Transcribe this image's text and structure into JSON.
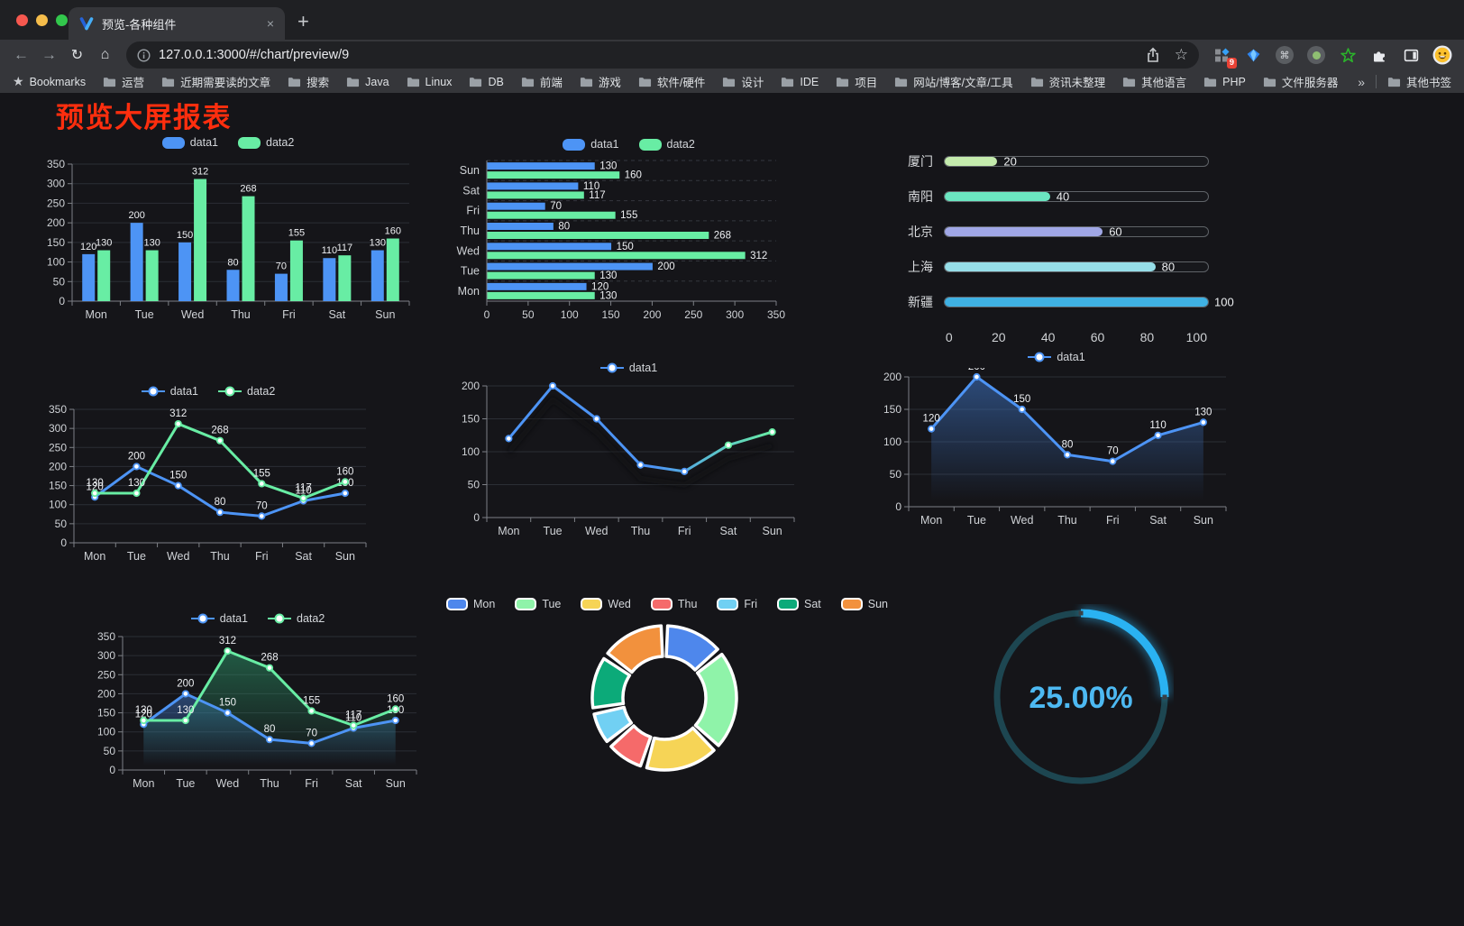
{
  "browser": {
    "tab_title": "预览-各种组件",
    "url": "127.0.0.1:3000/#/chart/preview/9",
    "extension_badge": "9",
    "bookmarks_label": "Bookmarks",
    "bookmarks": [
      "运营",
      "近期需要读的文章",
      "搜索",
      "Java",
      "Linux",
      "DB",
      "前端",
      "游戏",
      "软件/硬件",
      "设计",
      "IDE",
      "项目",
      "网站/博客/文章/工具",
      "资讯未整理",
      "其他语言",
      "PHP",
      "文件服务器"
    ],
    "bookmarks_overflow": "»",
    "other_bookmarks": "其他书签",
    "icons": {
      "back": "←",
      "forward": "→",
      "reload": "↻",
      "home": "⌂",
      "new_tab": "+",
      "tab_close": "×",
      "star": "☆",
      "menu": "⋮",
      "bookmarks_star": "★",
      "command": "⌘"
    },
    "traffic_lights": [
      "#f6584f",
      "#f5bd4b",
      "#32c74c"
    ]
  },
  "page": {
    "title": "预览大屏报表",
    "title_color": "#ff2e0e"
  },
  "chart_data": [
    {
      "id": "bar_vertical",
      "type": "bar",
      "categories": [
        "Mon",
        "Tue",
        "Wed",
        "Thu",
        "Fri",
        "Sat",
        "Sun"
      ],
      "yticks": [
        0,
        50,
        100,
        150,
        200,
        250,
        300,
        350
      ],
      "ylim": [
        0,
        350
      ],
      "legend_position": "top",
      "labels": true,
      "series": [
        {
          "name": "data1",
          "color": "#4d94f5",
          "values": [
            120,
            200,
            150,
            80,
            70,
            110,
            130
          ]
        },
        {
          "name": "data2",
          "color": "#68eda4",
          "values": [
            130,
            130,
            312,
            268,
            155,
            117,
            160
          ]
        }
      ]
    },
    {
      "id": "bar_horizontal",
      "type": "bar-horizontal",
      "categories": [
        "Mon",
        "Tue",
        "Wed",
        "Thu",
        "Fri",
        "Sat",
        "Sun"
      ],
      "display_order": "Sun at top, Mon at bottom",
      "xticks": [
        0,
        50,
        100,
        150,
        200,
        250,
        300,
        350
      ],
      "xlim": [
        0,
        350
      ],
      "legend_position": "top",
      "labels": true,
      "series": [
        {
          "name": "data1",
          "color": "#4d94f5",
          "values": [
            120,
            200,
            150,
            80,
            70,
            110,
            130
          ]
        },
        {
          "name": "data2",
          "color": "#68eda4",
          "values": [
            130,
            130,
            312,
            268,
            155,
            117,
            160
          ]
        }
      ]
    },
    {
      "id": "progress",
      "type": "bar-progress",
      "categories": [
        "厦门",
        "南阳",
        "北京",
        "上海",
        "新疆"
      ],
      "values": [
        20,
        40,
        60,
        80,
        100
      ],
      "colors": [
        "#c4ebad",
        "#6be6c1",
        "#a0a7e6",
        "#96dee8",
        "#3fb1e3"
      ],
      "xticks": [
        0,
        20,
        40,
        60,
        80,
        100
      ],
      "xlim": [
        0,
        100
      ]
    },
    {
      "id": "line_two",
      "type": "line",
      "categories": [
        "Mon",
        "Tue",
        "Wed",
        "Thu",
        "Fri",
        "Sat",
        "Sun"
      ],
      "yticks": [
        0,
        50,
        100,
        150,
        200,
        250,
        300,
        350
      ],
      "ylim": [
        0,
        350
      ],
      "legend_position": "top",
      "labels": true,
      "series": [
        {
          "name": "data1",
          "color": "#4d94f5",
          "values": [
            120,
            200,
            150,
            80,
            70,
            110,
            130
          ]
        },
        {
          "name": "data2",
          "color": "#68eda4",
          "values": [
            130,
            130,
            312,
            268,
            155,
            117,
            160
          ]
        }
      ]
    },
    {
      "id": "line_gradient",
      "type": "line",
      "categories": [
        "Mon",
        "Tue",
        "Wed",
        "Thu",
        "Fri",
        "Sat",
        "Sun"
      ],
      "yticks": [
        0,
        50,
        100,
        150,
        200
      ],
      "ylim": [
        0,
        200
      ],
      "legend_position": "top",
      "labels": false,
      "shadow": true,
      "series": [
        {
          "name": "data1",
          "color": "#4d94f5",
          "gradient": [
            "#4d94f5",
            "#68eda4"
          ],
          "values": [
            120,
            200,
            150,
            80,
            70,
            110,
            130
          ]
        }
      ]
    },
    {
      "id": "area_single",
      "type": "area",
      "categories": [
        "Mon",
        "Tue",
        "Wed",
        "Thu",
        "Fri",
        "Sat",
        "Sun"
      ],
      "yticks": [
        0,
        50,
        100,
        150,
        200
      ],
      "ylim": [
        0,
        200
      ],
      "legend_position": "top",
      "labels": true,
      "series": [
        {
          "name": "data1",
          "color": "#4d94f5",
          "fill_from": "rgba(63,119,201,0.55)",
          "fill_to": "rgba(63,119,201,0)",
          "values": [
            120,
            200,
            150,
            80,
            70,
            110,
            130
          ]
        }
      ]
    },
    {
      "id": "area_two",
      "type": "area",
      "categories": [
        "Mon",
        "Tue",
        "Wed",
        "Thu",
        "Fri",
        "Sat",
        "Sun"
      ],
      "yticks": [
        0,
        50,
        100,
        150,
        200,
        250,
        300,
        350
      ],
      "ylim": [
        0,
        350
      ],
      "legend_position": "top",
      "labels": true,
      "series": [
        {
          "name": "data1",
          "color": "#4d94f5",
          "fill_from": "rgba(63,119,201,0.5)",
          "fill_to": "rgba(63,119,201,0)",
          "values": [
            120,
            200,
            150,
            80,
            70,
            110,
            130
          ]
        },
        {
          "name": "data2",
          "color": "#68eda4",
          "fill_from": "rgba(46,158,110,0.5)",
          "fill_to": "rgba(46,158,110,0)",
          "values": [
            130,
            130,
            312,
            268,
            155,
            117,
            160
          ]
        }
      ]
    },
    {
      "id": "donut",
      "type": "pie",
      "categories": [
        "Mon",
        "Tue",
        "Wed",
        "Thu",
        "Fri",
        "Sat",
        "Sun"
      ],
      "values": [
        120,
        200,
        150,
        80,
        70,
        110,
        130
      ],
      "colors": [
        "#4e87ec",
        "#8ff3a9",
        "#f6d456",
        "#f56a6a",
        "#71d0f3",
        "#0caa79",
        "#f2913d"
      ],
      "legend_position": "top",
      "inner_outer": "donut"
    },
    {
      "id": "gauge",
      "type": "gauge",
      "value": 25,
      "max": 100,
      "display": "25.00%",
      "track_color": "#1d4651",
      "arc_color": "#2ab2f2",
      "text_color": "#4db9f2"
    }
  ]
}
